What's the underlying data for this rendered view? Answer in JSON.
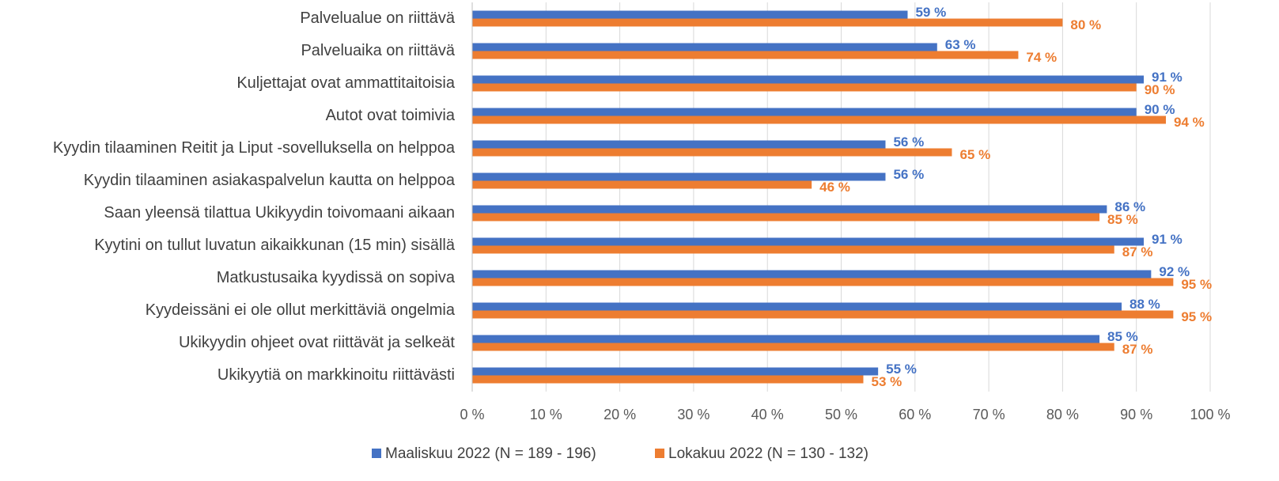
{
  "chart_data": {
    "type": "bar",
    "orientation": "horizontal",
    "categories": [
      "Palvelualue on riittävä",
      "Palveluaika on riittävä",
      "Kuljettajat ovat ammattitaitoisia",
      "Autot ovat toimivia",
      "Kyydin tilaaminen Reitit ja Liput -sovelluksella on helppoa",
      "Kyydin tilaaminen asiakaspalvelun kautta on helppoa",
      "Saan yleensä tilattua Ukikyydin toivomaani aikaan",
      "Kyytini on tullut luvatun aikaikkunan (15 min) sisällä",
      "Matkustusaika kyydissä on sopiva",
      "Kyydeissäni ei ole ollut merkittäviä ongelmia",
      "Ukikyydin ohjeet ovat riittävät ja selkeät",
      "Ukikyytiä on markkinoitu riittävästi"
    ],
    "series": [
      {
        "name": "Maaliskuu 2022 (N = 189 - 196)",
        "color": "#4472c4",
        "values": [
          59,
          63,
          91,
          90,
          56,
          56,
          86,
          91,
          92,
          88,
          85,
          55
        ],
        "value_labels": [
          "59 %",
          "63 %",
          "91 %",
          "90 %",
          "56 %",
          "56 %",
          "86 %",
          "91 %",
          "92 %",
          "88 %",
          "85 %",
          "55 %"
        ]
      },
      {
        "name": "Lokakuu 2022 (N = 130 - 132)",
        "color": "#ed7d31",
        "values": [
          80,
          74,
          90,
          94,
          65,
          46,
          85,
          87,
          95,
          95,
          87,
          53
        ],
        "value_labels": [
          "80 %",
          "74 %",
          "90 %",
          "94 %",
          "65 %",
          "46 %",
          "85 %",
          "87 %",
          "95 %",
          "95 %",
          "87 %",
          "53 %"
        ]
      }
    ],
    "xlim": [
      0,
      100
    ],
    "xticks": [
      {
        "value": 0,
        "label": "0 %"
      },
      {
        "value": 10,
        "label": "10 %"
      },
      {
        "value": 20,
        "label": "20 %"
      },
      {
        "value": 30,
        "label": "30 %"
      },
      {
        "value": 40,
        "label": "40 %"
      },
      {
        "value": 50,
        "label": "50 %"
      },
      {
        "value": 60,
        "label": "60 %"
      },
      {
        "value": 70,
        "label": "70 %"
      },
      {
        "value": 80,
        "label": "80 %"
      },
      {
        "value": 90,
        "label": "90 %"
      },
      {
        "value": 100,
        "label": "100 %"
      }
    ],
    "grid": true,
    "legend": "bottom"
  }
}
